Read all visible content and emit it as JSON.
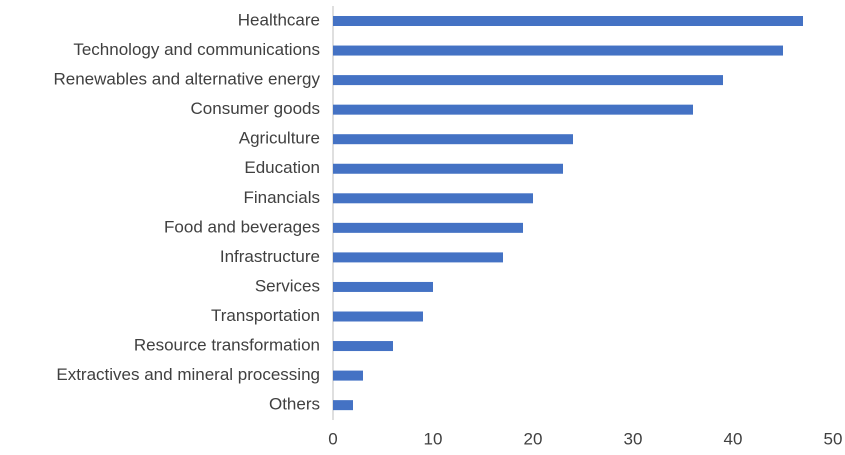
{
  "chart_data": {
    "type": "hbar",
    "categories": [
      "Healthcare",
      "Technology and communications",
      "Renewables and alternative energy",
      "Consumer goods",
      "Agriculture",
      "Education",
      "Financials",
      "Food and beverages",
      "Infrastructure",
      "Services",
      "Transportation",
      "Resource transformation",
      "Extractives and mineral processing",
      "Others"
    ],
    "values": [
      47,
      45,
      39,
      36,
      24,
      23,
      20,
      19,
      17,
      10,
      9,
      6,
      3,
      2
    ],
    "color": "#4472c4",
    "xlim": [
      0,
      50
    ],
    "xticks": [
      0,
      10,
      20,
      30,
      40,
      50
    ],
    "grid": false
  }
}
